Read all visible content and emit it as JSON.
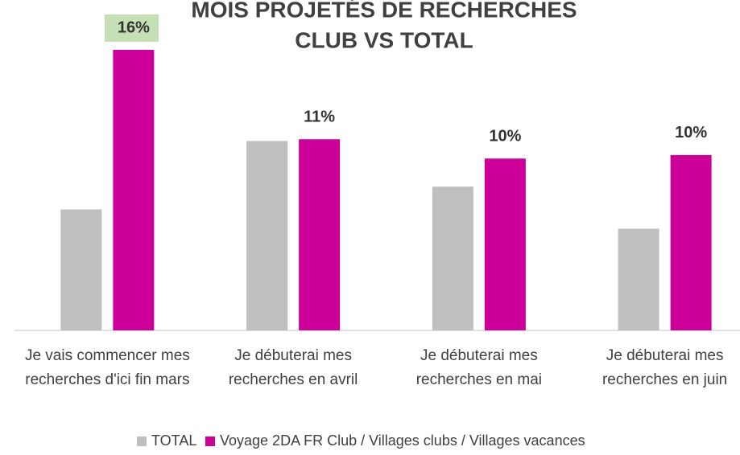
{
  "chart_data": {
    "type": "bar",
    "title": "MOIS PROJETÉS DE RECHERCHES",
    "subtitle": "CLUB VS TOTAL",
    "categories": [
      "Je vais commencer mes recherches d'ici fin mars",
      "Je débuterai mes recherches en avril",
      "Je débuterai mes recherches en mai",
      "Je débuterai mes recherches en juin"
    ],
    "series": [
      {
        "name": "TOTAL",
        "color": "#bfbfbf",
        "values": [
          6.9,
          10.8,
          8.2,
          5.8
        ]
      },
      {
        "name": "Voyage 2DA FR Club / Villages clubs / Villages vacances",
        "color": "#cc0099",
        "values": [
          16,
          10.9,
          9.8,
          10.0
        ],
        "value_labels": [
          "16%",
          "11%",
          "10%",
          "10%"
        ]
      }
    ],
    "ylim": [
      0,
      16
    ]
  }
}
